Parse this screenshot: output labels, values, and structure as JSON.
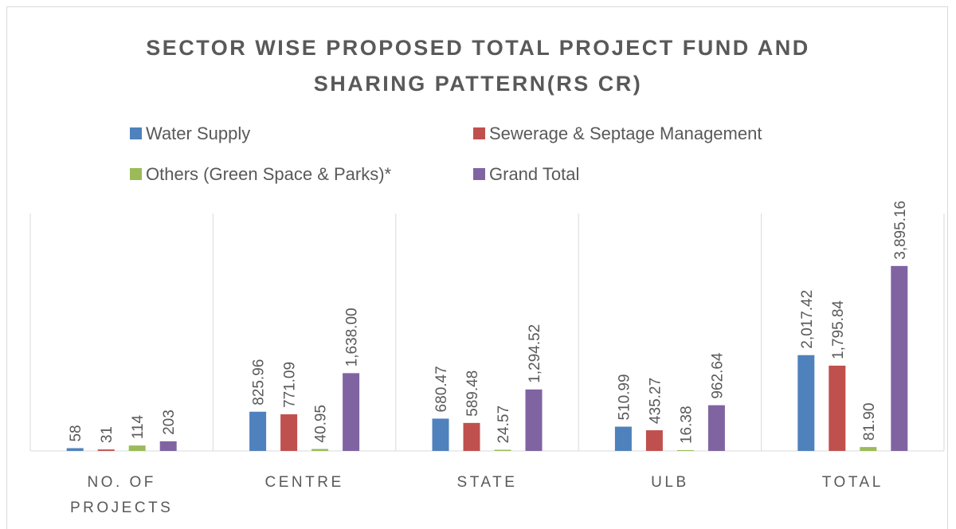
{
  "chart_data": {
    "type": "bar",
    "title": "SECTOR WISE PROPOSED TOTAL PROJECT FUND AND SHARING PATTERN(RS CR)",
    "categories": [
      "NO. OF PROJECTS",
      "CENTRE",
      "STATE",
      "ULB",
      "TOTAL"
    ],
    "series": [
      {
        "name": "Water Supply",
        "color": "#4f81bd",
        "values": [
          58,
          825.96,
          680.47,
          510.99,
          2017.42
        ],
        "value_labels": [
          "58",
          "825.96",
          "680.47",
          "510.99",
          "2,017.42"
        ]
      },
      {
        "name": "Sewerage & Septage Management",
        "color": "#c0504d",
        "values": [
          31,
          771.09,
          589.48,
          435.27,
          1795.84
        ],
        "value_labels": [
          "31",
          "771.09",
          "589.48",
          "435.27",
          "1,795.84"
        ]
      },
      {
        "name": "Others (Green Space & Parks)*",
        "color": "#9bbb59",
        "values": [
          114,
          40.95,
          24.57,
          16.38,
          81.9
        ],
        "value_labels": [
          "114",
          "40.95",
          "24.57",
          "16.38",
          "81.90"
        ]
      },
      {
        "name": "Grand Total",
        "color": "#8064a2",
        "values": [
          203,
          1638,
          1294.52,
          962.64,
          3895.16
        ],
        "value_labels": [
          "203",
          "1,638.00",
          "1,294.52",
          "962.64",
          "3,895.16"
        ]
      }
    ],
    "ylim": [
      0,
      5000
    ],
    "legend": "top"
  }
}
